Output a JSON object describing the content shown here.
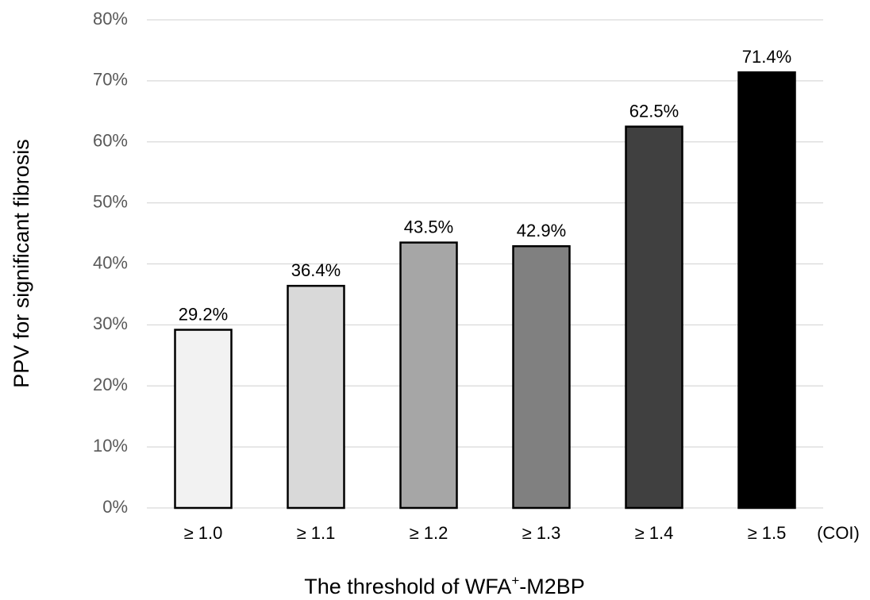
{
  "chart_data": {
    "type": "bar",
    "categories": [
      "≥ 1.0",
      "≥ 1.1",
      "≥ 1.2",
      "≥ 1.3",
      "≥ 1.4",
      "≥ 1.5"
    ],
    "values": [
      29.2,
      36.4,
      43.5,
      42.9,
      62.5,
      71.4
    ],
    "data_labels": [
      "29.2%",
      "36.4%",
      "43.5%",
      "42.9%",
      "62.5%",
      "71.4%"
    ],
    "bar_colors": [
      "#f2f2f2",
      "#d9d9d9",
      "#a6a6a6",
      "#808080",
      "#404040",
      "#000000"
    ],
    "ylim": [
      0,
      80
    ],
    "yticks": [
      0,
      10,
      20,
      30,
      40,
      50,
      60,
      70,
      80
    ],
    "ytick_labels": [
      "0%",
      "10%",
      "20%",
      "30%",
      "40%",
      "50%",
      "60%",
      "70%",
      "80%"
    ],
    "ylabel": "PPV for significant fibrosis",
    "xlabel_main": "The threshold of WFA",
    "xlabel_sup": "+",
    "xlabel_tail": "-M2BP",
    "x_unit": "(COI)",
    "grid": true,
    "legend": "none"
  }
}
